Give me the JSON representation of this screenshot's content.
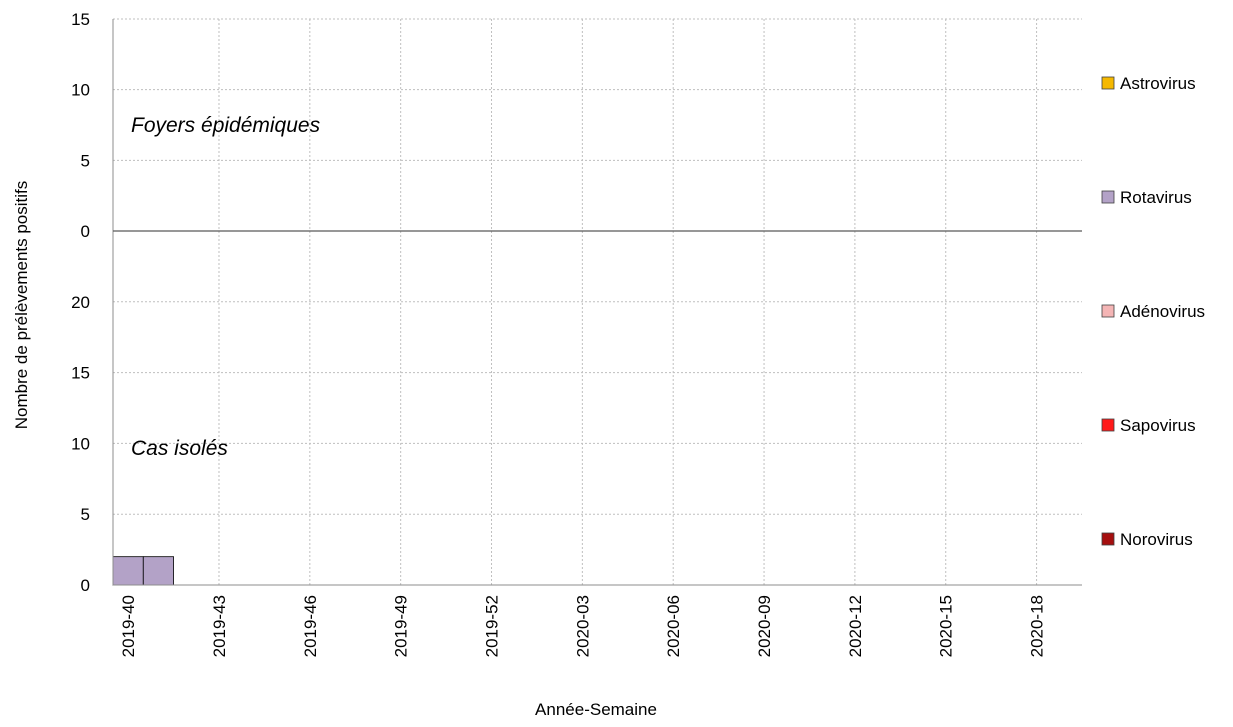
{
  "chart_data": {
    "type": "bar",
    "stacked": true,
    "xlabel": "Année-Semaine",
    "ylabel": "Nombre de prélèvements positifs",
    "x_tick_labels": [
      "2019-40",
      "2019-43",
      "2019-46",
      "2019-49",
      "2019-52",
      "2020-03",
      "2020-06",
      "2020-09",
      "2020-12",
      "2020-15",
      "2020-18"
    ],
    "categories": [
      "2019-40",
      "2019-41",
      "2019-42",
      "2019-43",
      "2019-44",
      "2019-45",
      "2019-46",
      "2019-47",
      "2019-48",
      "2019-49",
      "2019-50",
      "2019-51",
      "2019-52",
      "2020-01",
      "2020-02",
      "2020-03",
      "2020-04",
      "2020-05",
      "2020-06",
      "2020-07",
      "2020-08",
      "2020-09",
      "2020-10",
      "2020-11",
      "2020-12",
      "2020-13",
      "2020-14",
      "2020-15",
      "2020-16",
      "2020-17",
      "2020-18",
      "2020-19"
    ],
    "legend_position": "right",
    "grid": true,
    "panels": [
      {
        "label": "Foyers épidémiques",
        "ylim": [
          0,
          15
        ],
        "yticks": [
          0,
          5,
          10,
          15
        ],
        "series": [
          {
            "name": "Astrovirus",
            "color": "#F5B800",
            "values": [
              0,
              0,
              0,
              0,
              0,
              0,
              0,
              0,
              0,
              0,
              0,
              0,
              0,
              0,
              0,
              0,
              0,
              0,
              0,
              0,
              0,
              0,
              0,
              0,
              0,
              0,
              0,
              0,
              0,
              0,
              0,
              0
            ]
          },
          {
            "name": "Rotavirus",
            "color": "#B3A2C7",
            "values": [
              0,
              0,
              0,
              0,
              0,
              0,
              0,
              0,
              0,
              0,
              0,
              0,
              0,
              0,
              0,
              0,
              0,
              0,
              0,
              0,
              0,
              0,
              0,
              0,
              0,
              0,
              0,
              0,
              0,
              0,
              0,
              0
            ]
          },
          {
            "name": "Adénovirus",
            "color": "#F4B5B5",
            "values": [
              0,
              0,
              0,
              0,
              0,
              0,
              0,
              0,
              0,
              0,
              0,
              0,
              0,
              0,
              0,
              0,
              0,
              0,
              0,
              0,
              0,
              0,
              0,
              0,
              0,
              0,
              0,
              0,
              0,
              0,
              0,
              0
            ]
          },
          {
            "name": "Sapovirus",
            "color": "#FF1A1A",
            "values": [
              0,
              0,
              0,
              0,
              0,
              0,
              0,
              0,
              0,
              0,
              0,
              0,
              0,
              0,
              0,
              0,
              0,
              0,
              0,
              0,
              0,
              0,
              0,
              0,
              0,
              0,
              0,
              0,
              0,
              0,
              0,
              0
            ]
          },
          {
            "name": "Norovirus",
            "color": "#A50F0F",
            "values": [
              0,
              0,
              0,
              0,
              0,
              0,
              0,
              0,
              0,
              0,
              0,
              0,
              0,
              0,
              0,
              0,
              0,
              0,
              0,
              0,
              0,
              0,
              0,
              0,
              0,
              0,
              0,
              0,
              0,
              0,
              0,
              0
            ]
          }
        ]
      },
      {
        "label": "Cas isolés",
        "ylim": [
          0,
          25
        ],
        "yticks": [
          0,
          5,
          10,
          15,
          20
        ],
        "series": [
          {
            "name": "Astrovirus",
            "color": "#F5B800",
            "values": [
              0,
              0,
              0,
              0,
              0,
              0,
              0,
              0,
              0,
              0,
              0,
              0,
              0,
              0,
              0,
              0,
              0,
              0,
              0,
              0,
              0,
              0,
              0,
              0,
              0,
              0,
              0,
              0,
              0,
              0,
              0,
              0
            ]
          },
          {
            "name": "Rotavirus",
            "color": "#B3A2C7",
            "values": [
              2,
              2,
              0,
              0,
              0,
              0,
              0,
              0,
              0,
              0,
              0,
              0,
              0,
              0,
              0,
              0,
              0,
              0,
              0,
              0,
              0,
              0,
              0,
              0,
              0,
              0,
              0,
              0,
              0,
              0,
              0,
              0
            ]
          },
          {
            "name": "Adénovirus",
            "color": "#F4B5B5",
            "values": [
              0,
              0,
              0,
              0,
              0,
              0,
              0,
              0,
              0,
              0,
              0,
              0,
              0,
              0,
              0,
              0,
              0,
              0,
              0,
              0,
              0,
              0,
              0,
              0,
              0,
              0,
              0,
              0,
              0,
              0,
              0,
              0
            ]
          },
          {
            "name": "Sapovirus",
            "color": "#FF1A1A",
            "values": [
              0,
              0,
              0,
              0,
              0,
              0,
              0,
              0,
              0,
              0,
              0,
              0,
              0,
              0,
              0,
              0,
              0,
              0,
              0,
              0,
              0,
              0,
              0,
              0,
              0,
              0,
              0,
              0,
              0,
              0,
              0,
              0
            ]
          },
          {
            "name": "Norovirus",
            "color": "#A50F0F",
            "values": [
              0,
              0,
              0,
              0,
              0,
              0,
              0,
              0,
              0,
              0,
              0,
              0,
              0,
              0,
              0,
              0,
              0,
              0,
              0,
              0,
              0,
              0,
              0,
              0,
              0,
              0,
              0,
              0,
              0,
              0,
              0,
              0
            ]
          }
        ]
      }
    ],
    "legend": [
      {
        "name": "Astrovirus",
        "color": "#F5B800"
      },
      {
        "name": "Rotavirus",
        "color": "#B3A2C7"
      },
      {
        "name": "Adénovirus",
        "color": "#F4B5B5"
      },
      {
        "name": "Sapovirus",
        "color": "#FF1A1A"
      },
      {
        "name": "Norovirus",
        "color": "#A50F0F"
      }
    ]
  }
}
